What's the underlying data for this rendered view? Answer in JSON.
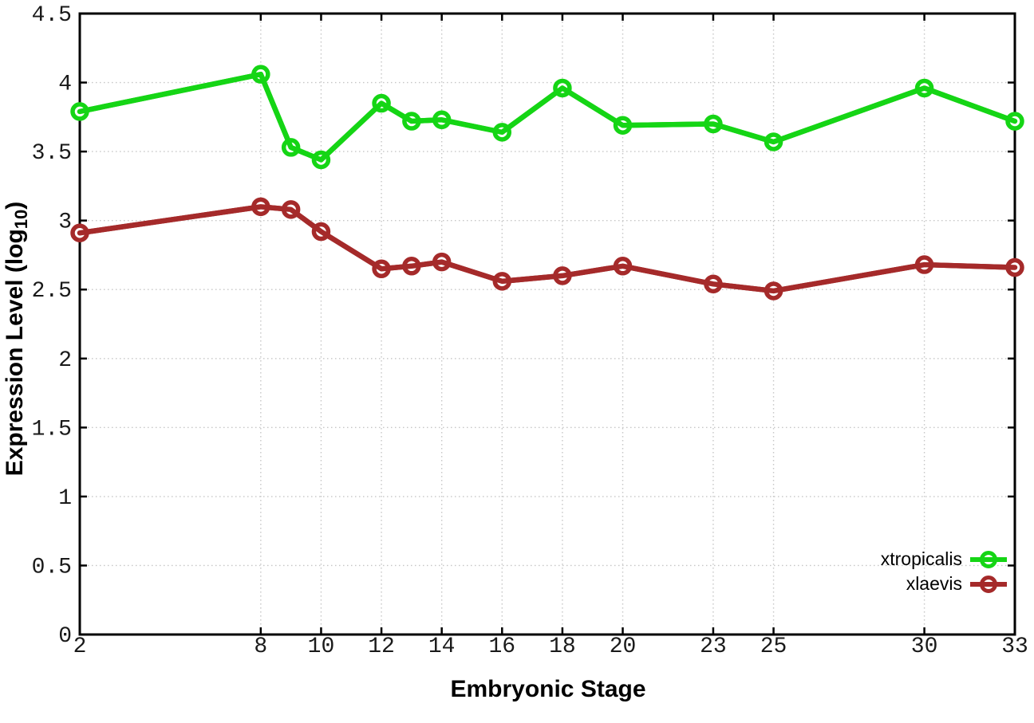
{
  "figure": {
    "background": "#ffffff",
    "axis_color": "#000000",
    "grid_color": "#c6c6c6",
    "tick_label_color": "#1a1a1a"
  },
  "chart_data": {
    "type": "line",
    "title": "",
    "xlabel": "Embryonic Stage",
    "ylabel": "Expression Level (log10)",
    "ylabel_parts": {
      "prefix": "Expression Level (log",
      "sub": "10",
      "suffix": ")"
    },
    "x": [
      2,
      8,
      9,
      10,
      12,
      13,
      14,
      16,
      18,
      20,
      23,
      25,
      30,
      33
    ],
    "x_ticks": [
      2,
      8,
      10,
      12,
      14,
      16,
      18,
      20,
      23,
      25,
      30,
      33
    ],
    "x_tick_labels": [
      "2",
      "8",
      "10",
      "12",
      "14",
      "16",
      "18",
      "20",
      "23",
      "25",
      "30",
      "33"
    ],
    "y_ticks": [
      0,
      0.5,
      1,
      1.5,
      2,
      2.5,
      3,
      3.5,
      4,
      4.5
    ],
    "y_tick_labels": [
      "0",
      "0.5",
      "1",
      "1.5",
      "2",
      "2.5",
      "3",
      "3.5",
      "4",
      "4.5"
    ],
    "xlim": [
      2,
      33
    ],
    "ylim": [
      0,
      4.5
    ],
    "grid": true,
    "legend_position": "bottom-right",
    "series": [
      {
        "name": "xtropicalis",
        "color": "#15d515",
        "values": [
          3.79,
          4.06,
          3.53,
          3.44,
          3.85,
          3.72,
          3.73,
          3.64,
          3.96,
          3.69,
          3.7,
          3.57,
          3.96,
          3.72
        ]
      },
      {
        "name": "xlaevis",
        "color": "#a52a2a",
        "values": [
          2.91,
          3.1,
          3.08,
          2.92,
          2.65,
          2.67,
          2.7,
          2.56,
          2.6,
          2.67,
          2.54,
          2.49,
          2.68,
          2.66
        ]
      }
    ]
  }
}
